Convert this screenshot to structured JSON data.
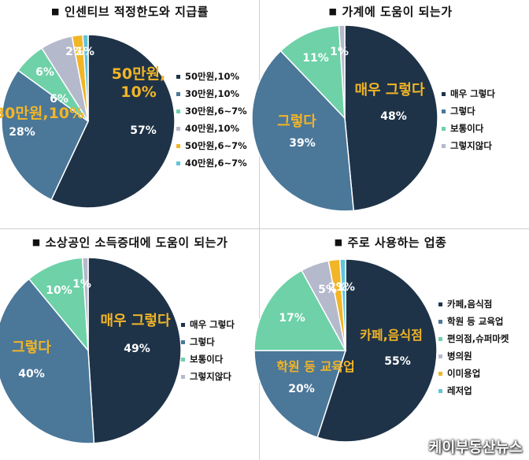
{
  "chart_data": [
    {
      "type": "pie",
      "title": "인센티브 적정한도와 지급률",
      "categories": [
        "50만원,10%",
        "30만원,10%",
        "30만원,6~7%",
        "40만원,10%",
        "50만원,6~7%",
        "40만원,6~7%"
      ],
      "values": [
        57,
        28,
        6,
        6,
        2,
        1
      ],
      "data_labels": [
        "57%",
        "28%",
        "6%",
        "6%",
        "2%",
        "1%"
      ],
      "colors": [
        "#1e3348",
        "#4b7799",
        "#6ed1a8",
        "#b5b9cc",
        "#f2b526",
        "#5fc4dc"
      ],
      "callouts": [
        "50만원,\n10%",
        "30만원,10%"
      ],
      "legend": "right"
    },
    {
      "type": "pie",
      "title": "가계에 도움이 되는가",
      "categories": [
        "매우 그렇다",
        "그렇다",
        "보통이다",
        "그렇지않다"
      ],
      "values": [
        48,
        39,
        11,
        1
      ],
      "data_labels": [
        "48%",
        "39%",
        "11%",
        "1%"
      ],
      "colors": [
        "#1e3348",
        "#4b7799",
        "#6ed1a8",
        "#b5b9cc"
      ],
      "callouts": [
        "매우 그렇다",
        "그렇다"
      ],
      "legend": "right"
    },
    {
      "type": "pie",
      "title": "소상공인 소득증대에 도움이 되는가",
      "categories": [
        "매우 그렇다",
        "그렇다",
        "보통이다",
        "그렇지않다"
      ],
      "values": [
        49,
        40,
        10,
        1
      ],
      "data_labels": [
        "49%",
        "40%",
        "10%",
        "1%"
      ],
      "colors": [
        "#1e3348",
        "#4b7799",
        "#6ed1a8",
        "#b5b9cc"
      ],
      "callouts": [
        "매우 그렇다",
        "그렇다"
      ],
      "legend": "right"
    },
    {
      "type": "pie",
      "title": "주로 사용하는 업종",
      "categories": [
        "카페,음식점",
        "학원 등 교육업",
        "편의점,슈퍼마켓",
        "병의원",
        "이미용업",
        "레저업"
      ],
      "values": [
        55,
        20,
        17,
        5,
        2,
        1
      ],
      "data_labels": [
        "55%",
        "20%",
        "17%",
        "5%",
        "2%",
        "1%"
      ],
      "colors": [
        "#1e3348",
        "#4b7799",
        "#6ed1a8",
        "#b5b9cc",
        "#f2b526",
        "#5fc4dc"
      ],
      "callouts": [
        "카페,음식점",
        "학원 등 교육업"
      ],
      "legend": "right"
    }
  ],
  "watermark": "케이부동산뉴스"
}
